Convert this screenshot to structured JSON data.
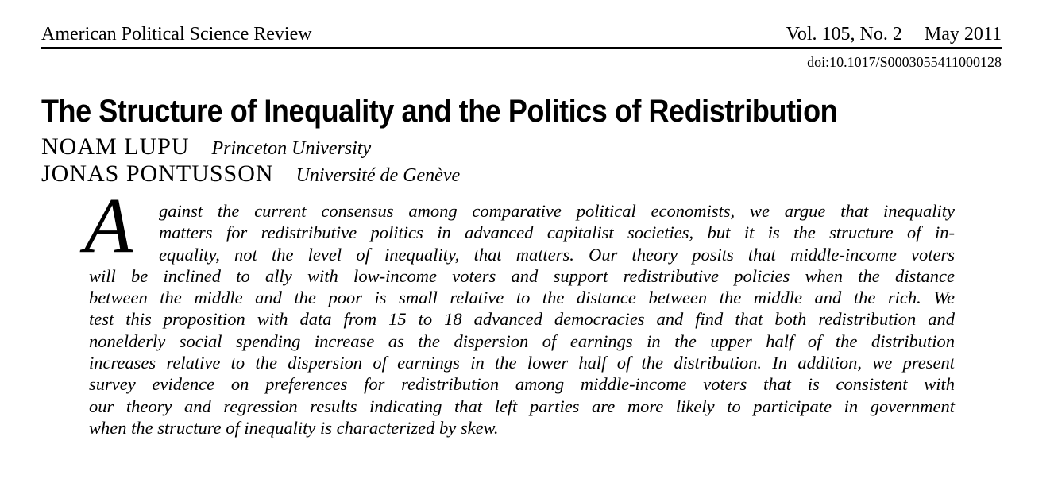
{
  "header": {
    "journal": "American Political Science Review",
    "volume": "Vol. 105, No. 2",
    "date": "May 2011",
    "doi": "doi:10.1017/S0003055411000128"
  },
  "article": {
    "title": "The Structure of Inequality and the Politics of Redistribution",
    "authors": [
      {
        "name": "NOAM LUPU",
        "affiliation": "Princeton University"
      },
      {
        "name": "JONAS PONTUSSON",
        "affiliation": "Université de Genève"
      }
    ]
  },
  "abstract": {
    "drop_cap": "A",
    "lines": [
      "gainst the current consensus among comparative political economists, we argue that inequality",
      "matters for redistributive politics in advanced capitalist societies, but it is the structure of in-",
      "equality, not the level of inequality, that matters. Our theory posits that middle-income voters",
      "will be inclined to ally with low-income voters and support redistributive policies when the distance",
      "between the middle and the poor is small relative to the distance between the middle and the rich. We",
      "test this proposition with data from 15 to 18 advanced democracies and find that both redistribution and",
      "nonelderly social spending increase as the dispersion of earnings in the upper half of the distribution",
      "increases relative to the dispersion of earnings in the lower half of the distribution. In addition, we present",
      "survey evidence on preferences for redistribution among middle-income voters that is consistent with",
      "our theory and regression results indicating that left parties are more likely to participate in government",
      "when the structure of inequality is characterized by skew."
    ]
  }
}
